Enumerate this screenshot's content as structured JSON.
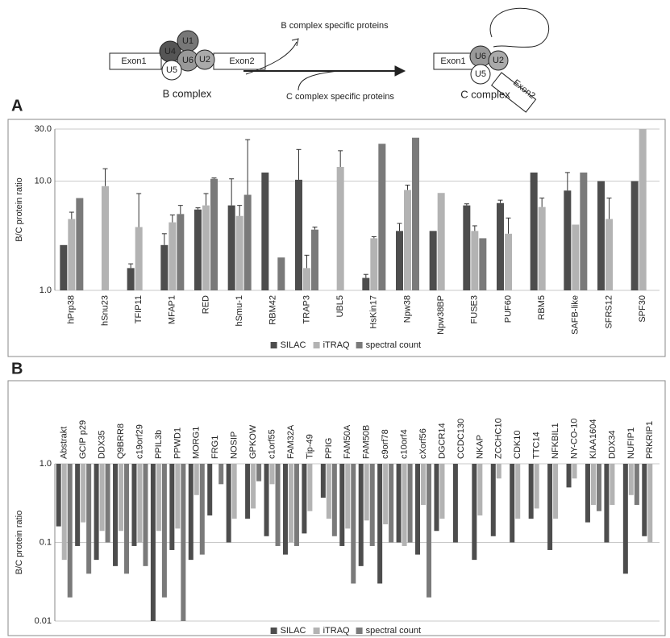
{
  "diagram": {
    "u4": "U4",
    "u1": "U1",
    "u6": "U6",
    "u2": "U2",
    "u5": "U5",
    "exon1": "Exon1",
    "exon2": "Exon2",
    "b_complex": "B complex",
    "b_specific": "B complex specific proteins",
    "c_specific": "C complex specific proteins",
    "c_u6": "U6",
    "c_u2": "U2",
    "c_u5": "U5",
    "c_exon1": "Exon1",
    "c_exon2": "Exon2",
    "c_complex": "C complex"
  },
  "chart_data": [
    {
      "type": "bar",
      "panel": "A",
      "ylabel": "B/C protein ratio",
      "log_scale": true,
      "grid": true,
      "legend": "bottom",
      "ylim": [
        1,
        30
      ],
      "yticks": [
        {
          "value": 1,
          "label": "1.0"
        },
        {
          "value": 10,
          "label": "10.0"
        },
        {
          "value": 30,
          "label": "30.0"
        }
      ],
      "categories": [
        "hPrp38",
        "hSnu23",
        "TFIP11",
        "MFAP1",
        "RED",
        "hSmu-1",
        "RBM42",
        "TRAP3",
        "UBL5",
        "HsKin17",
        "Npw38",
        "Npw38BP",
        "FUSE3",
        "PUF60",
        "RBM5",
        "SAFB-like",
        "SFRS12",
        "SPF30"
      ],
      "series": [
        {
          "name": "SILAC",
          "color": "#4d4d4d",
          "values": [
            2.6,
            null,
            1.6,
            2.6,
            5.5,
            6,
            12,
            10.3,
            null,
            1.3,
            3.5,
            3.5,
            6,
            6.3,
            12,
            8.2,
            10,
            10
          ],
          "errors": [
            null,
            null,
            0.15,
            0.7,
            0.2,
            4.5,
            null,
            9.2,
            null,
            0.1,
            0.6,
            null,
            0.2,
            0.4,
            null,
            3.8,
            null,
            null
          ]
        },
        {
          "name": "iTRAQ",
          "color": "#b3b3b3",
          "values": [
            4.5,
            9,
            3.8,
            4.2,
            6,
            4.8,
            null,
            1.6,
            13.5,
            3,
            8.3,
            7.8,
            3.5,
            3.3,
            5.8,
            4,
            4.5,
            30
          ],
          "errors": [
            0.7,
            4,
            3.9,
            0.7,
            1.7,
            1.2,
            null,
            0.5,
            5.5,
            0.1,
            0.9,
            null,
            0.4,
            1.3,
            1.2,
            null,
            2.5,
            null
          ]
        },
        {
          "name": "spectral count",
          "color": "#7a7a7a",
          "values": [
            7,
            null,
            null,
            5,
            10.5,
            7.5,
            2,
            3.6,
            null,
            22,
            25,
            null,
            3,
            null,
            null,
            12,
            null,
            null
          ],
          "errors": [
            null,
            null,
            null,
            1,
            0.2,
            16.5,
            null,
            0.2,
            null,
            null,
            null,
            null,
            null,
            null,
            null,
            null,
            null,
            null
          ]
        }
      ]
    },
    {
      "type": "bar",
      "panel": "B",
      "ylabel": "B/C protein ratio",
      "log_scale": true,
      "grid": true,
      "legend": "bottom",
      "ylim": [
        0.01,
        1
      ],
      "yticks": [
        0.01,
        0.1,
        {
          "value": 1,
          "label": "1.0"
        }
      ],
      "categories": [
        "Abstrakt",
        "GCIP p29",
        "DDX35",
        "Q9BRR8",
        "c19orf29",
        "PPIL3b",
        "PPWD1",
        "MORG1",
        "FRG1",
        "NOSIP",
        "GPKOW",
        "c1orf55",
        "FAM32A",
        "Tip-49",
        "PPIG",
        "FAM50A",
        "FAM50B",
        "c9orf78",
        "c10orf4",
        "cXorf56",
        "DGCR14",
        "CCDC130",
        "NKAP",
        "ZCCHC10",
        "CDK10",
        "TTC14",
        "NFKBIL1",
        "NY-CO-10",
        "KIAA1604",
        "DDX34",
        "NUFIP1",
        "PRKRIP1"
      ],
      "series": [
        {
          "name": "SILAC",
          "color": "#4d4d4d",
          "values": [
            0.16,
            0.09,
            0.06,
            0.05,
            0.09,
            0.01,
            0.08,
            0.06,
            0.22,
            0.1,
            0.2,
            0.12,
            0.07,
            0.13,
            0.37,
            0.09,
            0.05,
            0.03,
            0.1,
            0.07,
            0.14,
            0.1,
            0.06,
            0.12,
            0.1,
            0.2,
            0.08,
            0.5,
            0.18,
            0.1,
            0.04,
            0.12
          ]
        },
        {
          "name": "iTRAQ",
          "color": "#b3b3b3",
          "values": [
            0.06,
            0.18,
            0.14,
            0.14,
            0.1,
            0.14,
            0.15,
            0.4,
            null,
            0.2,
            0.27,
            0.55,
            0.1,
            0.25,
            0.2,
            0.15,
            0.19,
            0.17,
            0.09,
            0.3,
            0.2,
            null,
            0.22,
            0.65,
            0.2,
            0.27,
            0.2,
            0.65,
            0.3,
            0.3,
            0.4,
            0.1
          ]
        },
        {
          "name": "spectral count",
          "color": "#7a7a7a",
          "values": [
            0.02,
            0.04,
            0.1,
            0.04,
            0.05,
            0.02,
            0.01,
            0.07,
            0.55,
            null,
            0.6,
            0.09,
            0.09,
            null,
            0.12,
            0.03,
            0.09,
            0.1,
            0.1,
            0.02,
            null,
            null,
            null,
            null,
            null,
            null,
            null,
            null,
            0.25,
            null,
            0.3,
            null
          ]
        }
      ]
    }
  ]
}
